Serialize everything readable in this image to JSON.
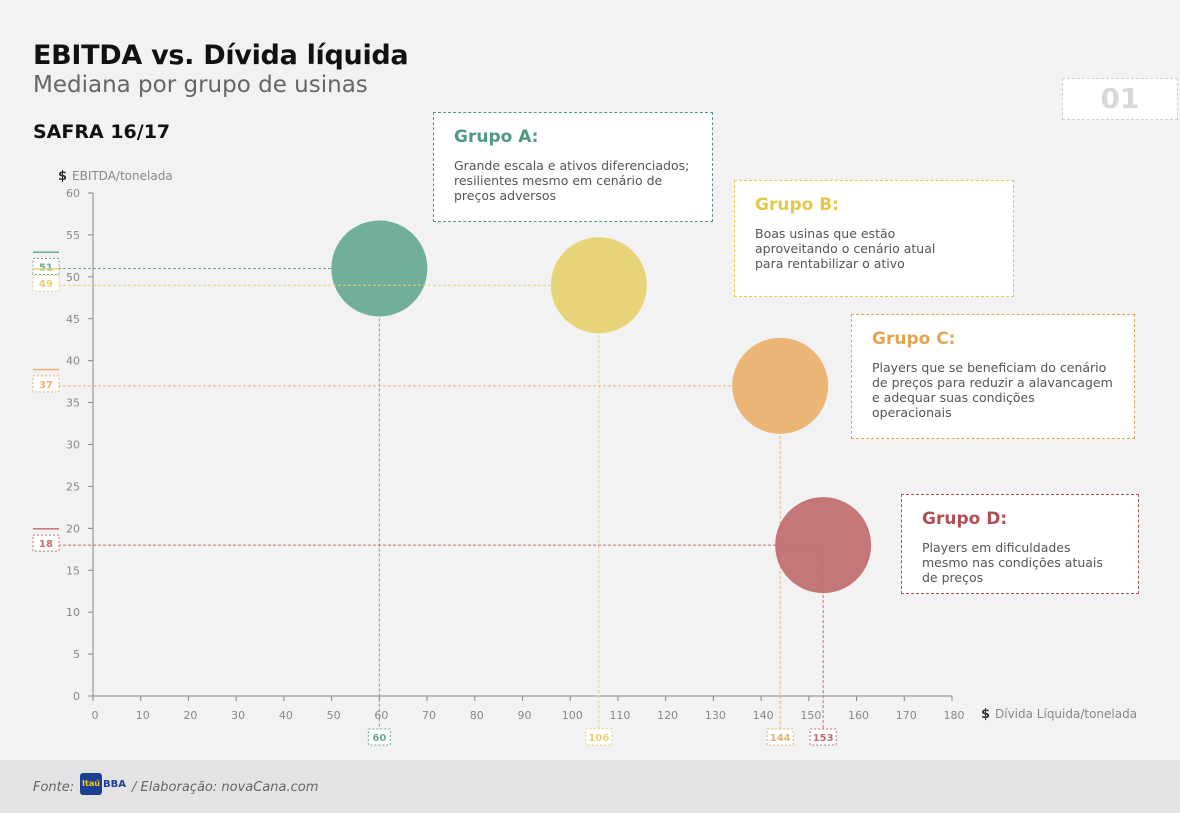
{
  "header": {
    "title": "EBITDA vs. Dívida líquida",
    "subtitle": "Mediana por grupo de usinas",
    "safra": "SAFRA 16/17",
    "page_number": "01"
  },
  "chart_data": {
    "type": "scatter",
    "ylabel": "EBITDA/tonelada",
    "xlabel": "Dívida  Líquida/tonelada",
    "ylabel_symbol": "$",
    "xlabel_symbol": "$",
    "xlim": [
      0,
      180
    ],
    "ylim": [
      0,
      60
    ],
    "x_ticks": [
      0,
      10,
      20,
      30,
      40,
      50,
      60,
      70,
      80,
      90,
      100,
      110,
      120,
      130,
      140,
      150,
      160,
      170,
      180
    ],
    "y_ticks": [
      0,
      5,
      10,
      15,
      20,
      25,
      30,
      35,
      40,
      45,
      50,
      55,
      60
    ],
    "grid": false,
    "points": [
      {
        "group": "A",
        "x": 60,
        "y": 51,
        "x_label": "60",
        "y_label": "51",
        "color": "#6aab94"
      },
      {
        "group": "B",
        "x": 106,
        "y": 49,
        "x_label": "106",
        "y_label": "49",
        "color": "#e6d271"
      },
      {
        "group": "C",
        "x": 144,
        "y": 37,
        "x_label": "144",
        "y_label": "37",
        "color": "#e9b16e"
      },
      {
        "group": "D",
        "x": 153,
        "y": 18,
        "x_label": "153",
        "y_label": "18",
        "color": "#c1706f"
      }
    ]
  },
  "groups": [
    {
      "title": "Grupo A:",
      "description": "Grande escala e ativos diferenciados; resilientes mesmo em cenário de preços adversos",
      "color": "#4e9a7e"
    },
    {
      "title": "Grupo B:",
      "description": "Boas usinas que estão aproveitando o cenário atual para rentabilizar o ativo",
      "color": "#e3c84a"
    },
    {
      "title": "Grupo C:",
      "description": "Players que se beneficiam do cenário de preços para reduzir a alavancagem e adequar suas condições operacionais",
      "color": "#e3a553"
    },
    {
      "title": "Grupo D:",
      "description": "Players em dificuldades mesmo nas condições atuais de preços",
      "color": "#b24f55"
    }
  ],
  "footer": {
    "source_label": "Fonte:",
    "logo_itau": "Itaú",
    "logo_bba": "BBA",
    "elaboration": "/ Elaboração: novaCana.com"
  }
}
